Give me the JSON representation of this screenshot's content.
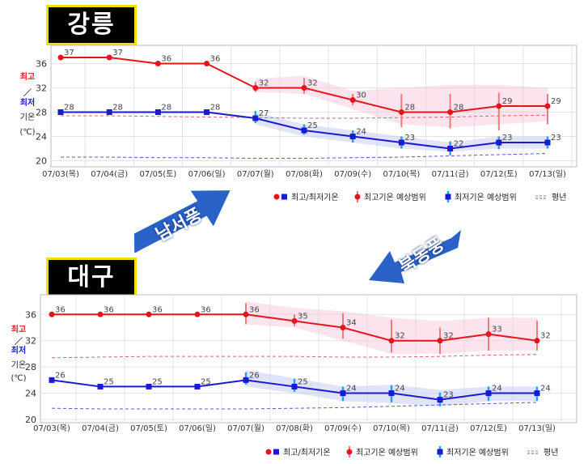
{
  "chart_data": [
    {
      "type": "line",
      "title": "강릉",
      "ylabel": [
        "최고",
        "／",
        "최저",
        "기온",
        "(℃)"
      ],
      "categories": [
        "07/03(목)",
        "07/04(금)",
        "07/05(토)",
        "07/06(일)",
        "07/07(월)",
        "07/08(화)",
        "07/09(수)",
        "07/10(목)",
        "07/11(금)",
        "07/12(토)",
        "07/13(일)"
      ],
      "ylim": [
        19,
        39
      ],
      "yticks": [
        20,
        24,
        28,
        32,
        36
      ],
      "series": [
        {
          "name": "최고기온",
          "values": [
            37,
            37,
            36,
            36,
            32,
            32,
            30,
            28,
            28,
            29,
            29
          ],
          "color": "#e8141c"
        },
        {
          "name": "최저기온",
          "values": [
            28,
            28,
            28,
            28,
            27,
            25,
            24,
            23,
            22,
            23,
            23
          ],
          "color": "#1a1ad0"
        }
      ],
      "max_range": [
        null,
        null,
        null,
        null,
        [
          31.3,
          33
        ],
        [
          31,
          33.6
        ],
        [
          29.1,
          31
        ],
        [
          25.5,
          31
        ],
        [
          25.3,
          31
        ],
        [
          25,
          31.2
        ],
        [
          26,
          31
        ]
      ],
      "min_range": [
        null,
        null,
        null,
        null,
        [
          26.2,
          28.2
        ],
        [
          24.3,
          26
        ],
        [
          23,
          25
        ],
        [
          22,
          24
        ],
        [
          20.9,
          23.2
        ],
        [
          21.9,
          24
        ],
        [
          22,
          24
        ]
      ],
      "max_band": [
        null,
        null,
        null,
        null,
        [
          31.3,
          33.5
        ],
        [
          31,
          34
        ],
        [
          28.5,
          31.5
        ],
        [
          26,
          32
        ],
        [
          25.5,
          32.5
        ],
        [
          26,
          32.5
        ],
        [
          26.5,
          32
        ]
      ],
      "min_band": [
        null,
        null,
        null,
        null,
        [
          26,
          28
        ],
        [
          24,
          26
        ],
        [
          23,
          25
        ],
        [
          22,
          24
        ],
        [
          21.5,
          23
        ],
        [
          22,
          24
        ],
        [
          22,
          24
        ]
      ],
      "normal_max": [
        27.4,
        27.4,
        27.3,
        27.2,
        27.1,
        27.0,
        27.0,
        27.1,
        27.2,
        27.4,
        27.5
      ],
      "normal_min": [
        20.6,
        20.6,
        20.5,
        20.5,
        20.4,
        20.4,
        20.5,
        20.6,
        20.8,
        21.0,
        21.2
      ],
      "legend": [
        "최고/최저기온",
        "최고기온 예상범위",
        "최저기온 예상범위",
        "평년"
      ]
    },
    {
      "type": "line",
      "title": "대구",
      "ylabel": [
        "최고",
        "／",
        "최저",
        "기온",
        "(℃)"
      ],
      "categories": [
        "07/03(목)",
        "07/04(금)",
        "07/05(토)",
        "07/06(일)",
        "07/07(월)",
        "07/08(화)",
        "07/09(수)",
        "07/10(목)",
        "07/11(금)",
        "07/12(토)",
        "07/13(일)"
      ],
      "ylim": [
        19.5,
        39
      ],
      "yticks": [
        20,
        24,
        28,
        32,
        36
      ],
      "series": [
        {
          "name": "최고기온",
          "values": [
            36,
            36,
            36,
            36,
            36,
            35,
            34,
            32,
            32,
            33,
            32
          ],
          "color": "#e8141c"
        },
        {
          "name": "최저기온",
          "values": [
            26,
            25,
            25,
            25,
            26,
            25,
            24,
            24,
            23,
            24,
            24
          ],
          "color": "#1a1ad0"
        }
      ],
      "max_range": [
        null,
        null,
        null,
        null,
        [
          34.5,
          37.7
        ],
        [
          34.2,
          36
        ],
        [
          32.3,
          36.2
        ],
        [
          30.2,
          35.2
        ],
        [
          30,
          34
        ],
        [
          30.5,
          35.5
        ],
        [
          30.5,
          35.1
        ]
      ],
      "min_range": [
        null,
        null,
        null,
        null,
        [
          25.3,
          27.2
        ],
        [
          24.2,
          26.2
        ],
        [
          22.8,
          25
        ],
        [
          22.6,
          25.2
        ],
        [
          22,
          24.1
        ],
        [
          22.8,
          25
        ],
        [
          22.8,
          25
        ]
      ],
      "max_band": [
        null,
        null,
        null,
        null,
        [
          34.5,
          38
        ],
        [
          34,
          37
        ],
        [
          32,
          36.5
        ],
        [
          30,
          35.5
        ],
        [
          30,
          35
        ],
        [
          30.5,
          35.5
        ],
        [
          30.5,
          35.5
        ]
      ],
      "min_band": [
        null,
        null,
        null,
        null,
        [
          25,
          27.5
        ],
        [
          24,
          26.3
        ],
        [
          22.8,
          25
        ],
        [
          22.5,
          25.3
        ],
        [
          22,
          24.5
        ],
        [
          22.8,
          25
        ],
        [
          22.8,
          25
        ]
      ],
      "normal_max": [
        29.4,
        29.5,
        29.6,
        29.6,
        29.6,
        29.6,
        29.5,
        29.5,
        29.6,
        29.8,
        29.9
      ],
      "normal_min": [
        21.7,
        21.6,
        21.6,
        21.6,
        21.6,
        21.7,
        21.8,
        22.0,
        22.2,
        22.4,
        22.6
      ],
      "legend": [
        "최고/최저기온",
        "최고기온 예상범위",
        "최저기온 예상범위",
        "평년"
      ]
    }
  ],
  "wind_labels": {
    "southwest": "남서풍",
    "northeast": "북동풍"
  },
  "colors": {
    "max": "#e8141c",
    "min": "#1a1ad0",
    "max_range": "#ee7a80",
    "min_range": "#20a6e6",
    "arrow": "#2b62c8",
    "title_border": "#f2e200"
  }
}
